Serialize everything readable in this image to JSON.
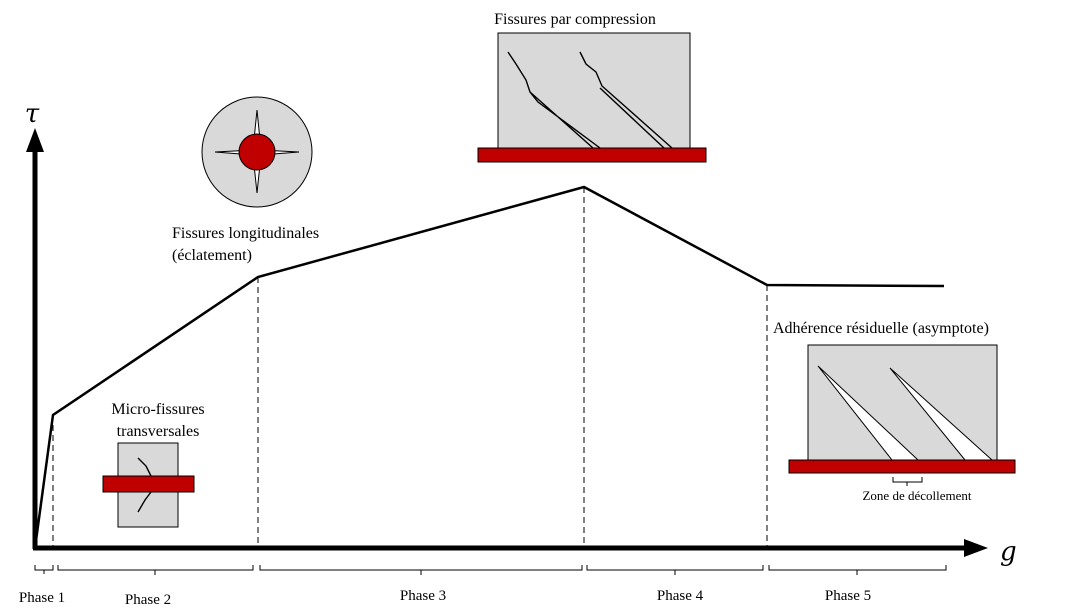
{
  "axes": {
    "y_label": "τ",
    "x_label": "g"
  },
  "annotations": {
    "compression": "Fissures par compression",
    "longitudinal": [
      "Fissures longitudinales",
      "(éclatement)"
    ],
    "micro": [
      "Micro-fissures",
      "transversales"
    ],
    "residual": "Adhérence résiduelle (asymptote)",
    "detachment": "Zone de décollement"
  },
  "phases": [
    "Phase 1",
    "Phase 2",
    "Phase 3",
    "Phase 4",
    "Phase 5"
  ]
}
